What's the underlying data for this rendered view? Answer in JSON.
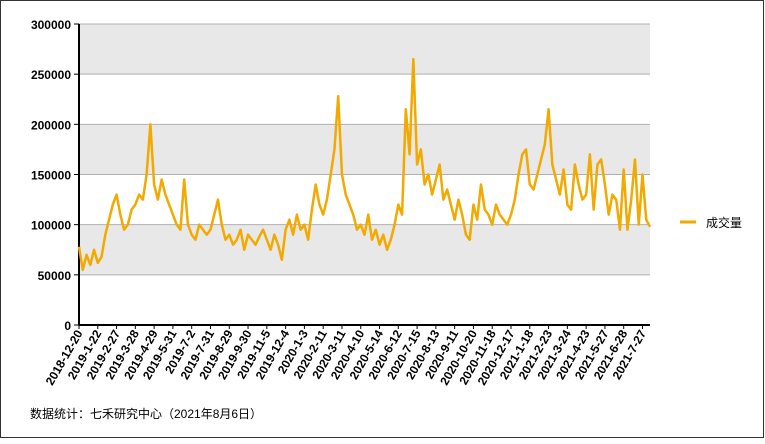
{
  "chart_data": {
    "type": "line",
    "categories": [
      "2018-12-20",
      null,
      null,
      null,
      null,
      "2019-1-22",
      null,
      null,
      null,
      null,
      "2019-2-27",
      null,
      null,
      null,
      null,
      "2019-3-28",
      null,
      null,
      null,
      null,
      "2019-4-29",
      null,
      null,
      null,
      null,
      "2019-5-31",
      null,
      null,
      null,
      null,
      "2019-7-2",
      null,
      null,
      null,
      null,
      "2019-7-31",
      null,
      null,
      null,
      null,
      "2019-8-29",
      null,
      null,
      null,
      null,
      "2019-9-30",
      null,
      null,
      null,
      null,
      "2019-11-5",
      null,
      null,
      null,
      null,
      "2019-12-4",
      null,
      null,
      null,
      null,
      "2020-1-3",
      null,
      null,
      null,
      null,
      "2020-2-11",
      null,
      null,
      null,
      null,
      "2020-3-11",
      null,
      null,
      null,
      null,
      "2020-4-10",
      null,
      null,
      null,
      null,
      "2020-5-14",
      null,
      null,
      null,
      null,
      "2020-6-12",
      null,
      null,
      null,
      null,
      "2020-7-15",
      null,
      null,
      null,
      null,
      "2020-8-13",
      null,
      null,
      null,
      null,
      "2020-9-11",
      null,
      null,
      null,
      null,
      "2020-10-20",
      null,
      null,
      null,
      null,
      "2020-11-18",
      null,
      null,
      null,
      null,
      "2020-12-17",
      null,
      null,
      null,
      null,
      "2021-1-18",
      null,
      null,
      null,
      null,
      "2021-2-23",
      null,
      null,
      null,
      null,
      "2021-3-24",
      null,
      null,
      null,
      null,
      "2021-4-23",
      null,
      null,
      null,
      null,
      "2021-5-27",
      null,
      null,
      null,
      null,
      "2021-6-28",
      null,
      null,
      null,
      null,
      "2021-7-27",
      null,
      null
    ],
    "series": [
      {
        "name": "成交量",
        "color": "#f2a900",
        "values": [
          78000,
          55000,
          70000,
          60000,
          75000,
          62000,
          68000,
          90000,
          105000,
          120000,
          130000,
          110000,
          95000,
          100000,
          115000,
          120000,
          130000,
          125000,
          150000,
          200000,
          140000,
          125000,
          145000,
          130000,
          120000,
          110000,
          100000,
          95000,
          145000,
          100000,
          90000,
          85000,
          100000,
          95000,
          90000,
          95000,
          110000,
          125000,
          100000,
          85000,
          90000,
          80000,
          85000,
          95000,
          75000,
          90000,
          85000,
          80000,
          88000,
          95000,
          85000,
          75000,
          90000,
          80000,
          65000,
          95000,
          105000,
          90000,
          110000,
          95000,
          100000,
          85000,
          115000,
          140000,
          120000,
          110000,
          125000,
          150000,
          175000,
          228000,
          150000,
          130000,
          120000,
          110000,
          95000,
          100000,
          90000,
          110000,
          85000,
          95000,
          80000,
          90000,
          75000,
          85000,
          100000,
          120000,
          110000,
          215000,
          170000,
          265000,
          160000,
          175000,
          140000,
          150000,
          130000,
          145000,
          160000,
          125000,
          135000,
          120000,
          105000,
          125000,
          110000,
          90000,
          85000,
          120000,
          105000,
          140000,
          115000,
          110000,
          100000,
          120000,
          110000,
          105000,
          100000,
          110000,
          125000,
          150000,
          170000,
          175000,
          140000,
          135000,
          150000,
          165000,
          180000,
          215000,
          160000,
          145000,
          130000,
          155000,
          120000,
          115000,
          160000,
          140000,
          125000,
          130000,
          170000,
          115000,
          160000,
          165000,
          140000,
          110000,
          130000,
          125000,
          95000,
          155000,
          95000,
          125000,
          165000,
          100000,
          150000,
          105000,
          98000
        ]
      }
    ],
    "ylim": [
      0,
      300000
    ],
    "yticks": [
      0,
      50000,
      100000,
      150000,
      200000,
      250000,
      300000
    ],
    "grid": true,
    "legend": "right",
    "source": "数据统计：七禾研究中心（2021年8月6日）"
  }
}
